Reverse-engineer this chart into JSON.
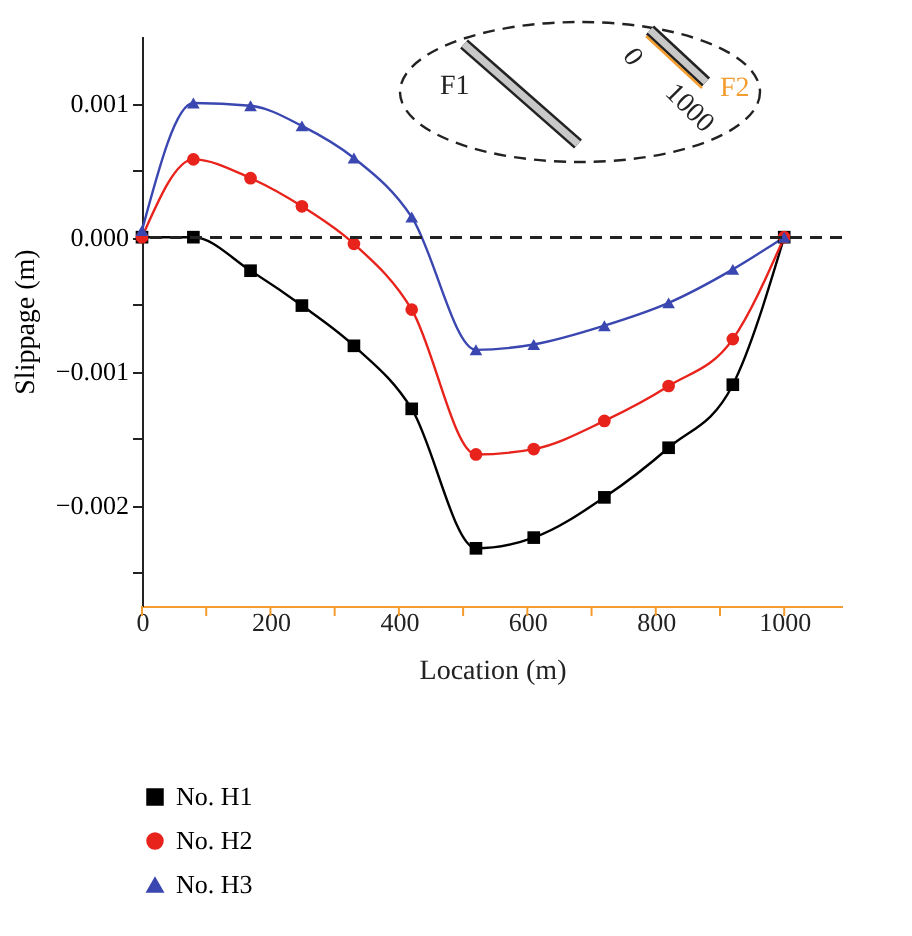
{
  "chart_data": {
    "type": "line",
    "xlabel": "Location (m)",
    "ylabel": "Slippage (m)",
    "x": [
      0,
      80,
      169,
      249,
      330,
      420,
      520,
      610,
      720,
      820,
      920,
      1000
    ],
    "series": [
      {
        "name": "No. H1",
        "color": "#000000",
        "marker": "square",
        "values": [
          0,
          0,
          -0.00025,
          -0.00051,
          -0.00081,
          -0.00128,
          -0.00232,
          -0.00224,
          -0.00194,
          -0.00157,
          -0.0011,
          0
        ]
      },
      {
        "name": "No. H2",
        "color": "#e8231c",
        "marker": "circle",
        "values": [
          0,
          0.00058,
          0.00044,
          0.00023,
          -5e-05,
          -0.00054,
          -0.00162,
          -0.00158,
          -0.00137,
          -0.00111,
          -0.00076,
          0
        ]
      },
      {
        "name": "No. H3",
        "color": "#3b47b0",
        "marker": "triangle",
        "values": [
          5e-05,
          0.001,
          0.00098,
          0.00083,
          0.00059,
          0.00015,
          -0.00084,
          -0.0008,
          -0.00066,
          -0.00049,
          -0.00024,
          0
        ]
      }
    ],
    "xlim": [
      0,
      1090
    ],
    "xticks": [
      0,
      {
        "value": 100,
        "label": null
      },
      200,
      {
        "value": 300,
        "label": null
      },
      400,
      {
        "value": 500,
        "label": null
      },
      600,
      {
        "value": 700,
        "label": null
      },
      800,
      {
        "value": 900,
        "label": null
      },
      1000
    ],
    "ylim": [
      -0.00275,
      0.0015
    ],
    "yticks": [
      {
        "value": -0.0025,
        "label": null
      },
      {
        "value": -0.002,
        "label": "−0.002"
      },
      {
        "value": -0.0015,
        "label": null
      },
      {
        "value": -0.001,
        "label": "−0.001"
      },
      {
        "value": -0.0005,
        "label": null
      },
      {
        "value": 0,
        "label": "0.000"
      },
      {
        "value": 0.0005,
        "label": null
      },
      0.001
    ],
    "ref_lines": [
      {
        "axis": "y",
        "value": 0,
        "color": "#222222",
        "line_style": "dashed"
      }
    ],
    "annotations": [
      "F1",
      "0",
      "1000",
      "F2"
    ],
    "legend": "bottom left",
    "line_style": "solid",
    "grid": false
  }
}
